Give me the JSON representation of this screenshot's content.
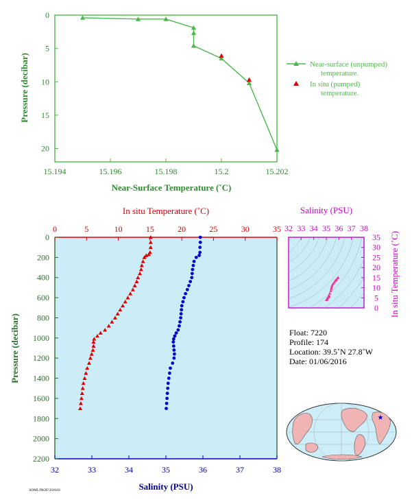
{
  "chart_data": [
    {
      "type": "line",
      "xlabel": "Near-Surface Temperature (˚C)",
      "ylabel": "Pressure (decibar)",
      "xlim": [
        15.194,
        15.202
      ],
      "ylim": [
        0,
        22
      ],
      "y_inverted": true,
      "x_ticks": [
        "15.194",
        "15.196",
        "15.198",
        "15.2",
        "15.202"
      ],
      "y_ticks": [
        "0",
        "5",
        "10",
        "15",
        "20"
      ],
      "legend_position": "right",
      "series": [
        {
          "name": "Near-surface (unpumped) temperature.",
          "marker": "triangle",
          "color": "#4cb84c",
          "points": [
            [
              15.195,
              0.4
            ],
            [
              15.197,
              0.6
            ],
            [
              15.198,
              0.6
            ],
            [
              15.199,
              1.9
            ],
            [
              15.199,
              2.7
            ],
            [
              15.199,
              4.6
            ],
            [
              15.2,
              6.5
            ],
            [
              15.201,
              10.2
            ],
            [
              15.202,
              20.2
            ]
          ]
        },
        {
          "name": "In situ (pumped) temperature.",
          "marker": "triangle",
          "color": "#dd0000",
          "points": [
            [
              15.2,
              6.1
            ],
            [
              15.201,
              9.7
            ]
          ]
        }
      ]
    },
    {
      "type": "scatter",
      "ylabel": "Pressure (decibar)",
      "ylim": [
        0,
        2200
      ],
      "y_inverted": true,
      "y_ticks": [
        "0",
        "200",
        "400",
        "600",
        "800",
        "1000",
        "1200",
        "1400",
        "1600",
        "1800",
        "2000",
        "2200"
      ],
      "top_axis": {
        "label": "In situ Temperature (˚C)",
        "range": [
          0,
          35
        ],
        "ticks": [
          "0",
          "5",
          "10",
          "15",
          "20",
          "25",
          "30",
          "35"
        ]
      },
      "bottom_axis": {
        "label": "Salinity (PSU)",
        "range": [
          32,
          38
        ],
        "ticks": [
          "32",
          "33",
          "34",
          "35",
          "36",
          "37",
          "38"
        ]
      },
      "series": [
        {
          "name": "In situ Temperature (˚C)",
          "axis": "top",
          "marker": "triangle",
          "color": "#dd0000",
          "points": [
            [
              15.1,
              0
            ],
            [
              15.1,
              50
            ],
            [
              15.1,
              100
            ],
            [
              15.0,
              150
            ],
            [
              14.8,
              170
            ],
            [
              14.4,
              180
            ],
            [
              14.1,
              200
            ],
            [
              13.9,
              240
            ],
            [
              13.7,
              280
            ],
            [
              13.6,
              320
            ],
            [
              13.4,
              360
            ],
            [
              13.1,
              400
            ],
            [
              12.9,
              440
            ],
            [
              12.6,
              480
            ],
            [
              12.3,
              520
            ],
            [
              11.9,
              560
            ],
            [
              11.5,
              600
            ],
            [
              11.1,
              640
            ],
            [
              10.7,
              680
            ],
            [
              10.3,
              720
            ],
            [
              9.9,
              760
            ],
            [
              9.5,
              800
            ],
            [
              9.0,
              840
            ],
            [
              8.5,
              880
            ],
            [
              7.9,
              920
            ],
            [
              7.2,
              950
            ],
            [
              6.7,
              980
            ],
            [
              6.2,
              1010
            ],
            [
              6.1,
              1040
            ],
            [
              6.1,
              1080
            ],
            [
              6.0,
              1120
            ],
            [
              5.8,
              1160
            ],
            [
              5.6,
              1200
            ],
            [
              5.4,
              1250
            ],
            [
              5.1,
              1300
            ],
            [
              4.9,
              1350
            ],
            [
              4.7,
              1400
            ],
            [
              4.5,
              1450
            ],
            [
              4.4,
              1500
            ],
            [
              4.3,
              1550
            ],
            [
              4.2,
              1600
            ],
            [
              4.1,
              1650
            ],
            [
              4.0,
              1700
            ]
          ]
        },
        {
          "name": "Salinity (PSU)",
          "axis": "bottom",
          "marker": "circle",
          "color": "#0000cc",
          "points": [
            [
              35.93,
              0
            ],
            [
              35.93,
              50
            ],
            [
              35.92,
              100
            ],
            [
              35.92,
              150
            ],
            [
              35.9,
              180
            ],
            [
              35.82,
              200
            ],
            [
              35.76,
              240
            ],
            [
              35.74,
              280
            ],
            [
              35.72,
              320
            ],
            [
              35.71,
              360
            ],
            [
              35.7,
              400
            ],
            [
              35.66,
              440
            ],
            [
              35.62,
              480
            ],
            [
              35.58,
              520
            ],
            [
              35.53,
              560
            ],
            [
              35.49,
              600
            ],
            [
              35.46,
              640
            ],
            [
              35.43,
              680
            ],
            [
              35.42,
              720
            ],
            [
              35.41,
              760
            ],
            [
              35.4,
              800
            ],
            [
              35.38,
              840
            ],
            [
              35.36,
              880
            ],
            [
              35.33,
              920
            ],
            [
              35.28,
              950
            ],
            [
              35.24,
              980
            ],
            [
              35.21,
              1010
            ],
            [
              35.2,
              1040
            ],
            [
              35.21,
              1080
            ],
            [
              35.22,
              1120
            ],
            [
              35.23,
              1160
            ],
            [
              35.22,
              1200
            ],
            [
              35.18,
              1250
            ],
            [
              35.12,
              1300
            ],
            [
              35.1,
              1350
            ],
            [
              35.08,
              1400
            ],
            [
              35.06,
              1450
            ],
            [
              35.05,
              1500
            ],
            [
              35.04,
              1550
            ],
            [
              35.03,
              1600
            ],
            [
              35.02,
              1650
            ],
            [
              35.01,
              1700
            ]
          ]
        }
      ]
    },
    {
      "type": "scatter",
      "xlabel": "Salinity (PSU)",
      "ylabel": "In situ Temperature (˚C)",
      "xlim": [
        32,
        38
      ],
      "ylim": [
        0,
        35
      ],
      "x_ticks": [
        "32",
        "33",
        "34",
        "35",
        "36",
        "37",
        "38"
      ],
      "y_ticks": [
        "0",
        "5",
        "10",
        "15",
        "20",
        "25",
        "30",
        "35"
      ],
      "color": "#ee3399",
      "points": [
        [
          35.93,
          15.1
        ],
        [
          35.93,
          15.1
        ],
        [
          35.92,
          15.0
        ],
        [
          35.9,
          14.8
        ],
        [
          35.82,
          14.1
        ],
        [
          35.74,
          13.7
        ],
        [
          35.71,
          13.4
        ],
        [
          35.62,
          12.6
        ],
        [
          35.53,
          11.9
        ],
        [
          35.46,
          11.1
        ],
        [
          35.42,
          10.3
        ],
        [
          35.4,
          9.5
        ],
        [
          35.36,
          8.5
        ],
        [
          35.28,
          7.2
        ],
        [
          35.21,
          6.2
        ],
        [
          35.21,
          6.1
        ],
        [
          35.23,
          5.8
        ],
        [
          35.18,
          5.4
        ],
        [
          35.1,
          4.9
        ],
        [
          35.06,
          4.5
        ],
        [
          35.04,
          4.3
        ],
        [
          35.02,
          4.1
        ],
        [
          35.01,
          4.0
        ]
      ]
    }
  ],
  "float_info": {
    "float": "Float:  7220",
    "profile": "Profile:  174",
    "location": "Location:  39.5˚N  27.8˚W",
    "date": "Date:  01/06/2016"
  },
  "footer": "AOML/PhOD 2016/01",
  "colors": {
    "green": "#4cb84c",
    "red": "#dd0000",
    "blue": "#0000cc",
    "magenta": "#cc00cc",
    "panel_bg": "#ccecf7",
    "land": "#f0b4b4",
    "ocean": "#cdeef8"
  }
}
